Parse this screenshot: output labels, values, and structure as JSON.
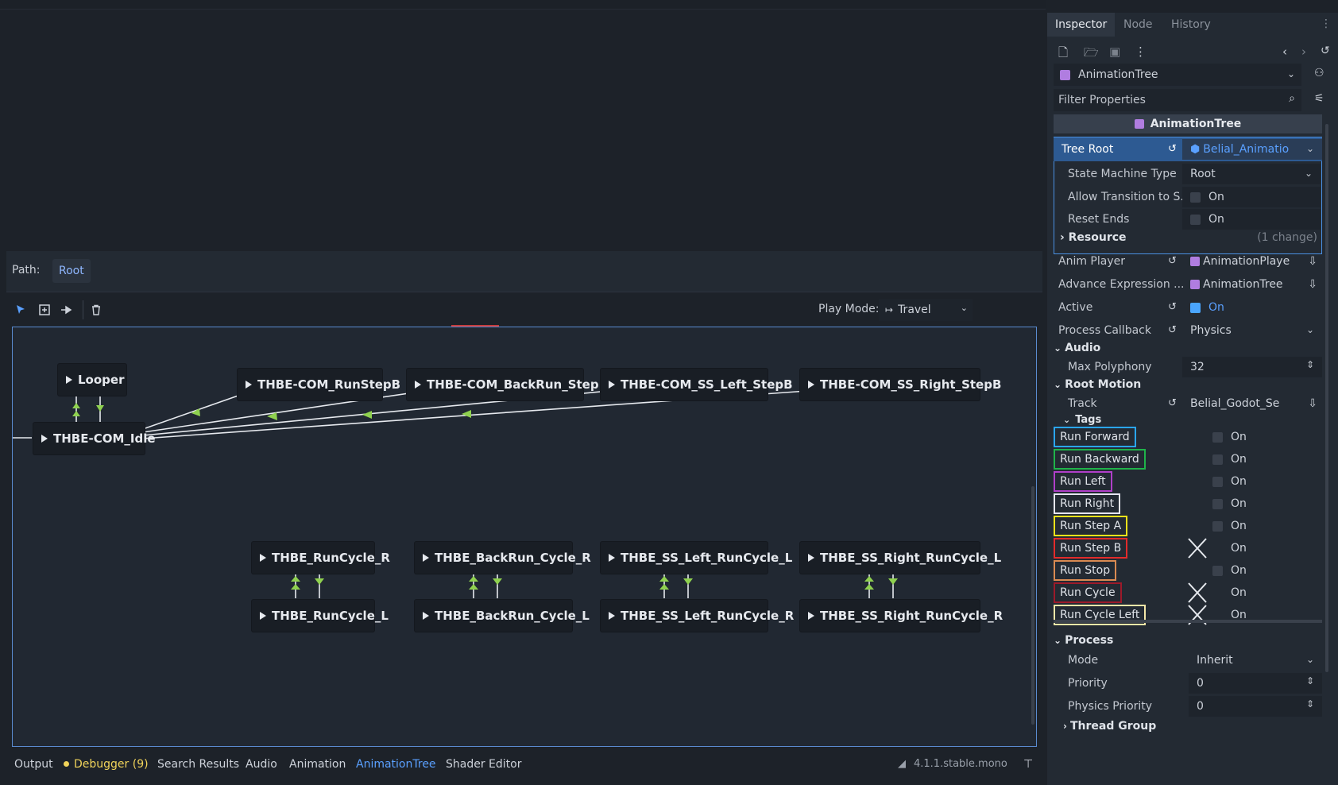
{
  "editor": {
    "path_label": "Path:",
    "path_value": "Root",
    "play_mode_label": "Play Mode:",
    "play_mode_value": "Travel"
  },
  "nodes": [
    {
      "id": "looper",
      "label": "Looper"
    },
    {
      "id": "idle",
      "label": "THBE-COM_Idle"
    },
    {
      "id": "runstepb",
      "label": "THBE-COM_RunStepB"
    },
    {
      "id": "backrunstepb",
      "label": "THBE-COM_BackRun_StepB"
    },
    {
      "id": "ssleftstepb",
      "label": "THBE-COM_SS_Left_StepB"
    },
    {
      "id": "ssrightstepb",
      "label": "THBE-COM_SS_Right_StepB"
    },
    {
      "id": "runcycler",
      "label": "THBE_RunCycle_R"
    },
    {
      "id": "backruncycler",
      "label": "THBE_BackRun_Cycle_R"
    },
    {
      "id": "ssleftruncyclel",
      "label": "THBE_SS_Left_RunCycle_L"
    },
    {
      "id": "ssrightruncyclel",
      "label": "THBE_SS_Right_RunCycle_L"
    },
    {
      "id": "runcyclel",
      "label": "THBE_RunCycle_L"
    },
    {
      "id": "backruncyclel",
      "label": "THBE_BackRun_Cycle_L"
    },
    {
      "id": "ssleftruncycler",
      "label": "THBE_SS_Left_RunCycle_R"
    },
    {
      "id": "ssrightruncycler",
      "label": "THBE_SS_Right_RunCycle_R"
    }
  ],
  "bottom_tabs": {
    "output": "Output",
    "debugger": "Debugger (9)",
    "search": "Search Results",
    "audio": "Audio",
    "animation": "Animation",
    "animtree": "AnimationTree",
    "shader": "Shader Editor",
    "version": "4.1.1.stable.mono"
  },
  "inspector": {
    "tabs": {
      "inspector": "Inspector",
      "node": "Node",
      "history": "History"
    },
    "object": "AnimationTree",
    "filter_placeholder": "Filter Properties",
    "header": "AnimationTree",
    "tree_root": {
      "label": "Tree Root",
      "value": "Belial_Animatio"
    },
    "state_machine_type": {
      "label": "State Machine Type",
      "value": "Root"
    },
    "allow_transition": {
      "label": "Allow Transition to S...",
      "value": "On"
    },
    "reset_ends": {
      "label": "Reset Ends",
      "value": "On"
    },
    "resource": {
      "label": "Resource",
      "note": "(1 change)"
    },
    "anim_player": {
      "label": "Anim Player",
      "value": "AnimationPlaye"
    },
    "advance_expr": {
      "label": "Advance Expression ...",
      "value": "AnimationTree"
    },
    "active": {
      "label": "Active",
      "value": "On"
    },
    "process_callback": {
      "label": "Process Callback",
      "value": "Physics"
    },
    "audio_section": "Audio",
    "max_polyphony": {
      "label": "Max Polyphony",
      "value": "32"
    },
    "root_motion_section": "Root Motion",
    "track": {
      "label": "Track",
      "value": "Belial_Godot_Se"
    },
    "tags_section": "Tags",
    "tags": [
      {
        "label": "Run Forward",
        "value": "On",
        "color": "#2aa6ff",
        "x": false
      },
      {
        "label": "Run Backward",
        "value": "On",
        "color": "#1fb34a",
        "x": false
      },
      {
        "label": "Run Left",
        "value": "On",
        "color": "#b03fc9",
        "x": false
      },
      {
        "label": "Run Right",
        "value": "On",
        "color": "#e6e6f2",
        "x": false
      },
      {
        "label": "Run Step A",
        "value": "On",
        "color": "#f2e21a",
        "x": false
      },
      {
        "label": "Run Step B",
        "value": "On",
        "color": "#e32b2b",
        "x": true
      },
      {
        "label": "Run Stop",
        "value": "On",
        "color": "#d98a52",
        "x": false
      },
      {
        "label": "Run Cycle",
        "value": "On",
        "color": "#9c1a2a",
        "x": true
      },
      {
        "label": "Run Cycle Left",
        "value": "On",
        "color": "#f3e6a8",
        "x": true
      }
    ],
    "process_section": "Process",
    "mode": {
      "label": "Mode",
      "value": "Inherit"
    },
    "priority": {
      "label": "Priority",
      "value": "0"
    },
    "physics_priority": {
      "label": "Physics Priority",
      "value": "0"
    },
    "thread_group": "Thread Group"
  },
  "colors": {
    "accent": "#8fb7ff",
    "link": "#5aa0ff",
    "node_bg": "#191e25",
    "arrow": "#8fd14f"
  }
}
